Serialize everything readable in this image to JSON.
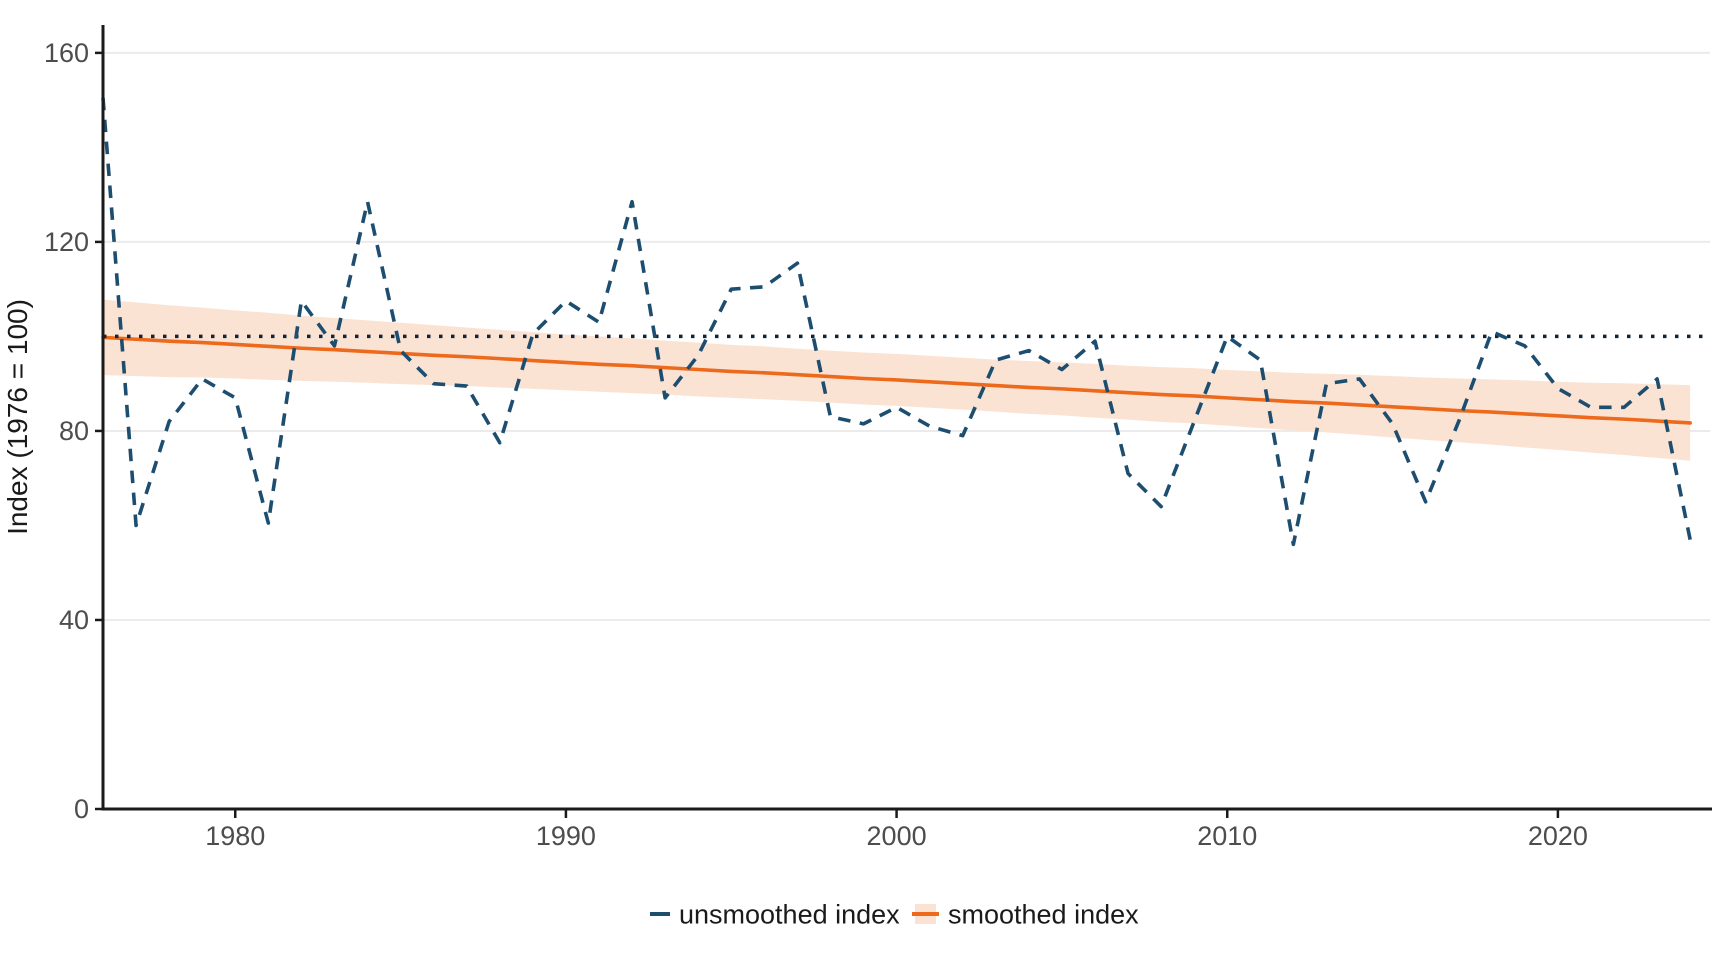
{
  "colors": {
    "background": "#ffffff",
    "unsmoothed_line": "#1d4e70",
    "smoothed_line": "#ed6a1c",
    "confidence_band": "#fbe3d4",
    "reference_dotted": "#10253a",
    "gridline": "#ebebeb",
    "axis_line": "#1a1a1a",
    "tick_label": "#4d4d4d",
    "axis_title": "#1a1a1a",
    "legend_text": "#1a1a1a"
  },
  "legend": {
    "items": [
      {
        "label": "unsmoothed index",
        "key": "dashed-line",
        "color": "#1d4e70"
      },
      {
        "label": "smoothed index",
        "key": "line-on-band",
        "color": "#ed6a1c",
        "band_color": "#fbe3d4"
      }
    ]
  },
  "chart_data": {
    "type": "line",
    "title": "",
    "xlabel": "",
    "y_label": "Index (1976 = 100)",
    "x_ticks": [
      1980,
      1990,
      2000,
      2010,
      2020
    ],
    "y_ticks": [
      0,
      40,
      80,
      120,
      160
    ],
    "xlim": [
      1976,
      2024.6
    ],
    "ylim": [
      0,
      165.9
    ],
    "grid": "horizontal-major",
    "reference_line": {
      "y": 100,
      "style": "dotted",
      "color": "#10253a"
    },
    "x": [
      1976,
      1977,
      1978,
      1979,
      1980,
      1981,
      1982,
      1983,
      1984,
      1985,
      1986,
      1987,
      1988,
      1989,
      1990,
      1991,
      1992,
      1993,
      1994,
      1995,
      1996,
      1997,
      1998,
      1999,
      2000,
      2001,
      2002,
      2003,
      2004,
      2005,
      2006,
      2007,
      2008,
      2009,
      2010,
      2011,
      2012,
      2013,
      2014,
      2015,
      2016,
      2017,
      2018,
      2019,
      2020,
      2021,
      2022,
      2023,
      2024
    ],
    "series": [
      {
        "name": "unsmoothed index",
        "style": "dashed",
        "color": "#1d4e70",
        "values": [
          150.5,
          60,
          82,
          91,
          87,
          60.5,
          107.5,
          98,
          128.5,
          97,
          90,
          89.5,
          77.5,
          100.5,
          107.5,
          103,
          128.5,
          87,
          96,
          110,
          110.5,
          115.5,
          83,
          81.5,
          85,
          81,
          79,
          95,
          97,
          93,
          99,
          71,
          64,
          82,
          100,
          95,
          56,
          90,
          91,
          81.5,
          65,
          82,
          101,
          98,
          89,
          85,
          85,
          91,
          57
        ]
      },
      {
        "name": "smoothed index",
        "style": "solid",
        "color": "#ed6a1c",
        "band_color": "#fbe3d4",
        "values": [
          99.8,
          99.4,
          99.0,
          98.7,
          98.3,
          97.9,
          97.5,
          97.2,
          96.8,
          96.4,
          96.0,
          95.7,
          95.3,
          94.9,
          94.5,
          94.1,
          93.8,
          93.4,
          93.0,
          92.6,
          92.3,
          91.9,
          91.5,
          91.1,
          90.8,
          90.4,
          90.0,
          89.6,
          89.2,
          88.9,
          88.5,
          88.1,
          87.7,
          87.4,
          87.0,
          86.6,
          86.2,
          85.9,
          85.5,
          85.1,
          84.7,
          84.3,
          84.0,
          83.6,
          83.2,
          82.8,
          82.5,
          82.1,
          81.7
        ],
        "band_upper": [
          107.8,
          107.2,
          106.6,
          106.1,
          105.5,
          105.0,
          104.4,
          103.9,
          103.4,
          102.9,
          102.4,
          101.9,
          101.4,
          100.9,
          100.4,
          100.0,
          99.6,
          99.1,
          98.7,
          98.2,
          97.9,
          97.4,
          97.0,
          96.6,
          96.3,
          95.9,
          95.5,
          95.1,
          94.8,
          94.5,
          94.2,
          93.8,
          93.5,
          93.3,
          92.9,
          92.6,
          92.3,
          92.1,
          91.9,
          91.6,
          91.3,
          91.1,
          90.9,
          90.7,
          90.4,
          90.2,
          90.1,
          89.9,
          89.7
        ],
        "band_lower": [
          91.8,
          91.6,
          91.4,
          91.3,
          91.1,
          90.8,
          90.6,
          90.4,
          90.2,
          89.9,
          89.7,
          89.5,
          89.2,
          88.9,
          88.6,
          88.3,
          88.0,
          87.7,
          87.3,
          87.0,
          86.7,
          86.4,
          86.0,
          85.6,
          85.3,
          84.9,
          84.5,
          84.1,
          83.6,
          83.3,
          82.8,
          82.4,
          81.9,
          81.6,
          81.1,
          80.6,
          80.1,
          79.7,
          79.2,
          78.6,
          78.1,
          77.6,
          77.1,
          76.5,
          76.0,
          75.4,
          74.9,
          74.3,
          73.7
        ]
      }
    ]
  }
}
